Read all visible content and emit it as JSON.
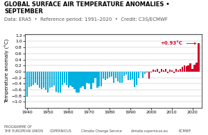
{
  "chart_data": {
    "type": "bar",
    "title": "GLOBAL SURFACE AIR TEMPERATURE ANOMALIES • SEPTEMBER",
    "subtitle": "Data: ERA5  •  Reference period: 1991–2020  •  Credit: C3S/ECMWF",
    "y_label": "Temperature anomaly (°C)",
    "x": [
      1940,
      1941,
      1942,
      1943,
      1944,
      1945,
      1946,
      1947,
      1948,
      1949,
      1950,
      1951,
      1952,
      1953,
      1954,
      1955,
      1956,
      1957,
      1958,
      1959,
      1960,
      1961,
      1962,
      1963,
      1964,
      1965,
      1966,
      1967,
      1968,
      1969,
      1970,
      1971,
      1972,
      1973,
      1974,
      1975,
      1976,
      1977,
      1978,
      1979,
      1980,
      1981,
      1982,
      1983,
      1984,
      1985,
      1986,
      1987,
      1988,
      1989,
      1990,
      1991,
      1992,
      1993,
      1994,
      1995,
      1996,
      1997,
      1998,
      1999,
      2000,
      2001,
      2002,
      2003,
      2004,
      2005,
      2006,
      2007,
      2008,
      2009,
      2010,
      2011,
      2012,
      2013,
      2014,
      2015,
      2016,
      2017,
      2018,
      2019,
      2020,
      2021,
      2022,
      2023
    ],
    "values": [
      -0.83,
      -0.5,
      -0.48,
      -0.44,
      -0.36,
      -0.43,
      -0.54,
      -0.58,
      -0.53,
      -0.6,
      -0.7,
      -0.53,
      -0.5,
      -0.45,
      -0.66,
      -0.7,
      -0.68,
      -0.43,
      -0.36,
      -0.43,
      -0.53,
      -0.46,
      -0.5,
      -0.58,
      -0.68,
      -0.7,
      -0.53,
      -0.48,
      -0.58,
      -0.36,
      -0.4,
      -0.58,
      -0.36,
      -0.2,
      -0.53,
      -0.48,
      -0.48,
      -0.23,
      -0.28,
      -0.23,
      -0.18,
      -0.16,
      -0.36,
      -0.2,
      -0.33,
      -0.38,
      -0.36,
      -0.13,
      -0.1,
      -0.28,
      -0.28,
      -0.26,
      -0.5,
      -0.43,
      -0.2,
      -0.03,
      -0.2,
      -0.08,
      -0.03,
      -0.23,
      -0.02,
      0.06,
      0.04,
      0.08,
      -0.04,
      0.08,
      0.04,
      0.1,
      -0.04,
      0.06,
      0.04,
      -0.04,
      0.08,
      0.04,
      0.1,
      0.16,
      0.2,
      0.18,
      0.2,
      0.28,
      0.1,
      0.23,
      0.3,
      0.93
    ],
    "colors": [
      "#00b0e0",
      "#00b0e0",
      "#00b0e0",
      "#00b0e0",
      "#00b0e0",
      "#00b0e0",
      "#00b0e0",
      "#00b0e0",
      "#00b0e0",
      "#00b0e0",
      "#00b0e0",
      "#00b0e0",
      "#00b0e0",
      "#00b0e0",
      "#00b0e0",
      "#00b0e0",
      "#00b0e0",
      "#00b0e0",
      "#00b0e0",
      "#00b0e0",
      "#00b0e0",
      "#00b0e0",
      "#00b0e0",
      "#00b0e0",
      "#00b0e0",
      "#00b0e0",
      "#00b0e0",
      "#00b0e0",
      "#00b0e0",
      "#00b0e0",
      "#00b0e0",
      "#00b0e0",
      "#00b0e0",
      "#00b0e0",
      "#00b0e0",
      "#00b0e0",
      "#00b0e0",
      "#00b0e0",
      "#00b0e0",
      "#00b0e0",
      "#00b0e0",
      "#00b0e0",
      "#00b0e0",
      "#00b0e0",
      "#00b0e0",
      "#00b0e0",
      "#00b0e0",
      "#00b0e0",
      "#00b0e0",
      "#00b0e0",
      "#00b0e0",
      "#00b0e0",
      "#00b0e0",
      "#00b0e0",
      "#00b0e0",
      "#00b0e0",
      "#00b0e0",
      "#00b0e0",
      "#d0002a",
      "#d0002a",
      "#d0002a",
      "#d0002a",
      "#d0002a",
      "#d0002a",
      "#d0002a",
      "#d0002a",
      "#d0002a",
      "#d0002a",
      "#d0002a",
      "#d0002a",
      "#d0002a",
      "#d0002a",
      "#d0002a",
      "#d0002a",
      "#d0002a",
      "#d0002a",
      "#d0002a",
      "#d0002a",
      "#d0002a",
      "#d0002a",
      "#d0002a",
      "#d0002a",
      "#d0002a",
      "#d0002a"
    ],
    "xlim": [
      1939,
      2024.5
    ],
    "ylim": [
      -1.2,
      1.25
    ],
    "xticks": [
      1940,
      1950,
      1960,
      1970,
      1980,
      1990,
      2000,
      2010,
      2020
    ],
    "yticks": [
      {
        "value": -1.0,
        "label": "−1.0"
      },
      {
        "value": -0.8,
        "label": "−0.8"
      },
      {
        "value": -0.6,
        "label": "−0.6"
      },
      {
        "value": -0.4,
        "label": "−0.4"
      },
      {
        "value": -0.2,
        "label": "−0.2"
      },
      {
        "value": 0.0,
        "label": "0.0"
      },
      {
        "value": 0.2,
        "label": "0.2"
      },
      {
        "value": 0.4,
        "label": "0.4"
      },
      {
        "value": 0.6,
        "label": "0.6"
      },
      {
        "value": 0.8,
        "label": "0.8"
      },
      {
        "value": 1.0,
        "label": "1.0"
      },
      {
        "value": 1.2,
        "label": "1.2"
      }
    ],
    "grid": "y",
    "annotations": [
      {
        "text": "+0.93°C",
        "x": 2023
      },
      {
        "text": "PROGRAMME OF\nTHE EUROPEAN UNION"
      },
      {
        "text": "COPERNICUS"
      },
      {
        "text": "Climate Change Service"
      },
      {
        "text": "climate.copernicus.eu"
      },
      {
        "text": "ECMWF"
      }
    ]
  }
}
